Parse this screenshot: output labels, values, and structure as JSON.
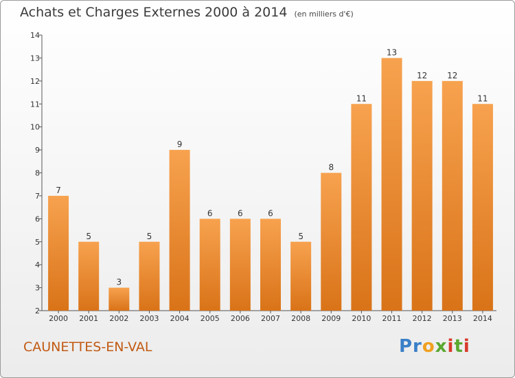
{
  "title": "Achats et Charges Externes 2000 à 2014",
  "subtitle": "(en milliers d'€)",
  "place": "CAUNETTES-EN-VAL",
  "logo_text": "Proxiti",
  "colors": {
    "bar_light": "#f7a24f",
    "bar_dark": "#d97318",
    "place": "#c15a12"
  },
  "chart_data": {
    "type": "bar",
    "title": "Achats et Charges Externes 2000 à 2014",
    "subtitle": "(en milliers d'€)",
    "categories": [
      "2000",
      "2001",
      "2002",
      "2003",
      "2004",
      "2005",
      "2006",
      "2007",
      "2008",
      "2009",
      "2010",
      "2011",
      "2012",
      "2013",
      "2014"
    ],
    "values": [
      7,
      5,
      3,
      5,
      9,
      6,
      6,
      6,
      5,
      8,
      11,
      13,
      12,
      12,
      11
    ],
    "ylim": [
      2,
      14
    ],
    "yticks": [
      2,
      3,
      4,
      5,
      6,
      7,
      8,
      9,
      10,
      11,
      12,
      13,
      14
    ],
    "grid": false,
    "data_labels": true
  }
}
